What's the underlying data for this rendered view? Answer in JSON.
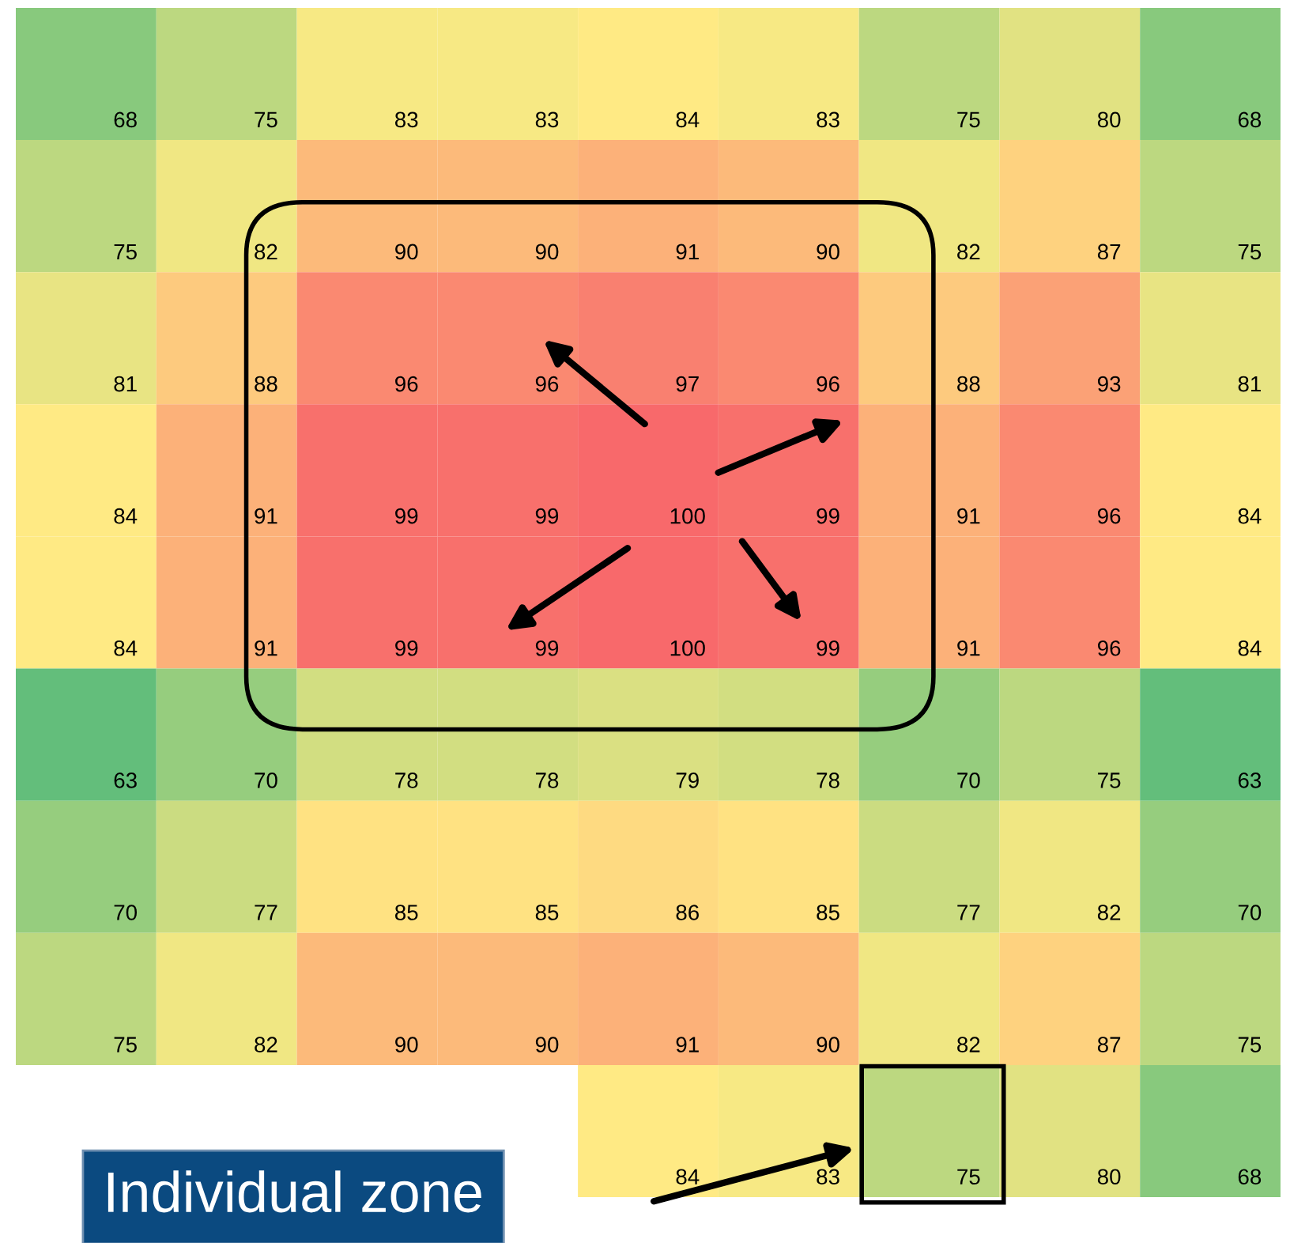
{
  "chart_data": {
    "type": "heatmap",
    "categories": [
      null,
      null,
      null,
      null,
      null,
      null,
      null,
      null,
      null
    ],
    "y_categories": [
      null,
      null,
      null,
      null,
      null,
      null,
      null,
      null,
      null
    ],
    "cells": [
      [
        68,
        75,
        83,
        83,
        84,
        83,
        75,
        80,
        68
      ],
      [
        75,
        82,
        90,
        90,
        91,
        90,
        82,
        87,
        75
      ],
      [
        81,
        88,
        96,
        96,
        97,
        96,
        88,
        93,
        81
      ],
      [
        84,
        91,
        99,
        99,
        100,
        99,
        91,
        96,
        84
      ],
      [
        84,
        91,
        99,
        99,
        100,
        99,
        91,
        96,
        84
      ],
      [
        63,
        70,
        78,
        78,
        79,
        78,
        70,
        75,
        63
      ],
      [
        70,
        77,
        85,
        85,
        86,
        85,
        77,
        82,
        70
      ],
      [
        75,
        82,
        90,
        90,
        91,
        90,
        82,
        87,
        75
      ],
      [
        null,
        null,
        null,
        null,
        84,
        83,
        75,
        80,
        68
      ]
    ],
    "colors": [
      "#63be7b",
      "#ffeb84",
      "#f8696b"
    ],
    "data_labels": true,
    "annotations": [
      "Individual zone"
    ]
  }
}
